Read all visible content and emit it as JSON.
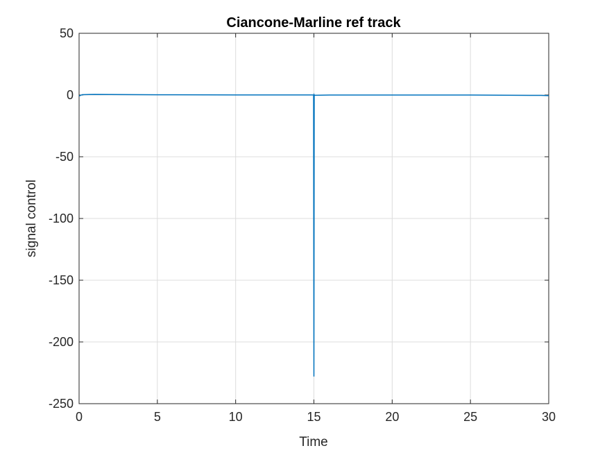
{
  "chart_data": {
    "type": "line",
    "title": "Ciancone-Marline ref track",
    "xlabel": "Time",
    "ylabel": "signal control",
    "xlim": [
      0,
      30
    ],
    "ylim": [
      -250,
      50
    ],
    "xticks": [
      0,
      5,
      10,
      15,
      20,
      25,
      30
    ],
    "yticks": [
      50,
      0,
      -50,
      -100,
      -150,
      -200,
      -250
    ],
    "xtick_labels": [
      "0",
      "5",
      "10",
      "15",
      "20",
      "25",
      "30"
    ],
    "ytick_labels": [
      "50",
      "0",
      "-50",
      "-100",
      "-150",
      "-200",
      "-250"
    ],
    "grid": true,
    "legend": "none",
    "series": [
      {
        "color": "#0072bd",
        "x": [
          0,
          0.2,
          1,
          2,
          5,
          10,
          14.98,
          15.0,
          15.02,
          15.04,
          16,
          20,
          25,
          29.5,
          30
        ],
        "y": [
          -0.8,
          0.3,
          0.5,
          0.4,
          0.2,
          0.1,
          0.1,
          -228,
          0.2,
          -0.2,
          0,
          0,
          0,
          -0.3,
          -0.5
        ]
      }
    ]
  }
}
